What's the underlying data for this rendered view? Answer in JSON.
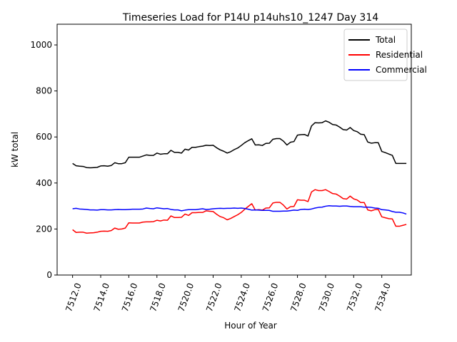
{
  "chart_data": {
    "type": "line",
    "title": "Timeseries Load for P14U p14uhs10_1247  Day 314",
    "xlabel": "Hour of Year",
    "ylabel": "kW total",
    "xlim": [
      7510.9,
      7536.1
    ],
    "ylim": [
      0,
      1090
    ],
    "xticks": [
      7512,
      7514,
      7516,
      7518,
      7520,
      7522,
      7524,
      7526,
      7528,
      7530,
      7532,
      7534
    ],
    "xtick_labels": [
      "7512.0",
      "7514.0",
      "7516.0",
      "7518.0",
      "7520.0",
      "7522.0",
      "7524.0",
      "7526.0",
      "7528.0",
      "7530.0",
      "7532.0",
      "7534.0"
    ],
    "yticks": [
      0,
      200,
      400,
      600,
      800,
      1000
    ],
    "ytick_labels": [
      "0",
      "200",
      "400",
      "600",
      "800",
      "1000"
    ],
    "legend_position": "top-right",
    "x_start": 7512,
    "x_step": 0.25,
    "series": [
      {
        "name": "Total",
        "color": "#000000",
        "values": [
          485,
          475,
          473,
          472,
          467,
          466,
          467,
          468,
          474,
          475,
          473,
          476,
          488,
          484,
          484,
          488,
          512,
          512,
          512,
          512,
          517,
          522,
          520,
          520,
          530,
          525,
          527,
          527,
          542,
          533,
          533,
          530,
          547,
          543,
          555,
          555,
          558,
          560,
          564,
          563,
          564,
          553,
          544,
          538,
          530,
          536,
          545,
          552,
          563,
          575,
          584,
          592,
          565,
          566,
          563,
          572,
          573,
          590,
          593,
          593,
          582,
          565,
          577,
          580,
          608,
          610,
          611,
          604,
          648,
          662,
          661,
          662,
          670,
          664,
          654,
          652,
          643,
          632,
          630,
          641,
          628,
          623,
          612,
          610,
          578,
          573,
          575,
          575,
          537,
          532,
          526,
          520,
          485,
          485,
          485,
          485
        ]
      },
      {
        "name": "Residential",
        "color": "#ff0000",
        "values": [
          197,
          185,
          186,
          186,
          182,
          183,
          184,
          186,
          190,
          191,
          190,
          193,
          204,
          199,
          200,
          204,
          227,
          226,
          226,
          226,
          230,
          231,
          231,
          232,
          238,
          235,
          239,
          238,
          257,
          250,
          250,
          251,
          265,
          259,
          271,
          271,
          272,
          272,
          279,
          277,
          276,
          264,
          254,
          249,
          240,
          246,
          254,
          262,
          272,
          286,
          298,
          310,
          282,
          284,
          282,
          291,
          292,
          313,
          316,
          316,
          304,
          287,
          297,
          298,
          327,
          325,
          325,
          319,
          361,
          371,
          367,
          367,
          371,
          363,
          354,
          352,
          343,
          332,
          330,
          343,
          331,
          326,
          315,
          315,
          283,
          279,
          284,
          285,
          253,
          249,
          245,
          244,
          212,
          212,
          216,
          220
        ]
      },
      {
        "name": "Commercial",
        "color": "#0000ff",
        "values": [
          288,
          290,
          287,
          286,
          285,
          283,
          283,
          282,
          284,
          284,
          283,
          283,
          284,
          285,
          284,
          284,
          285,
          286,
          286,
          286,
          287,
          291,
          289,
          288,
          292,
          290,
          288,
          289,
          285,
          283,
          283,
          279,
          282,
          284,
          284,
          284,
          286,
          288,
          285,
          286,
          288,
          289,
          290,
          289,
          290,
          290,
          291,
          290,
          291,
          289,
          286,
          282,
          283,
          282,
          281,
          281,
          281,
          277,
          277,
          277,
          278,
          278,
          280,
          282,
          281,
          285,
          286,
          285,
          287,
          291,
          294,
          295,
          299,
          301,
          300,
          300,
          299,
          300,
          300,
          298,
          297,
          297,
          297,
          295,
          295,
          294,
          291,
          290,
          284,
          283,
          281,
          276,
          273,
          273,
          270,
          265
        ]
      }
    ]
  }
}
